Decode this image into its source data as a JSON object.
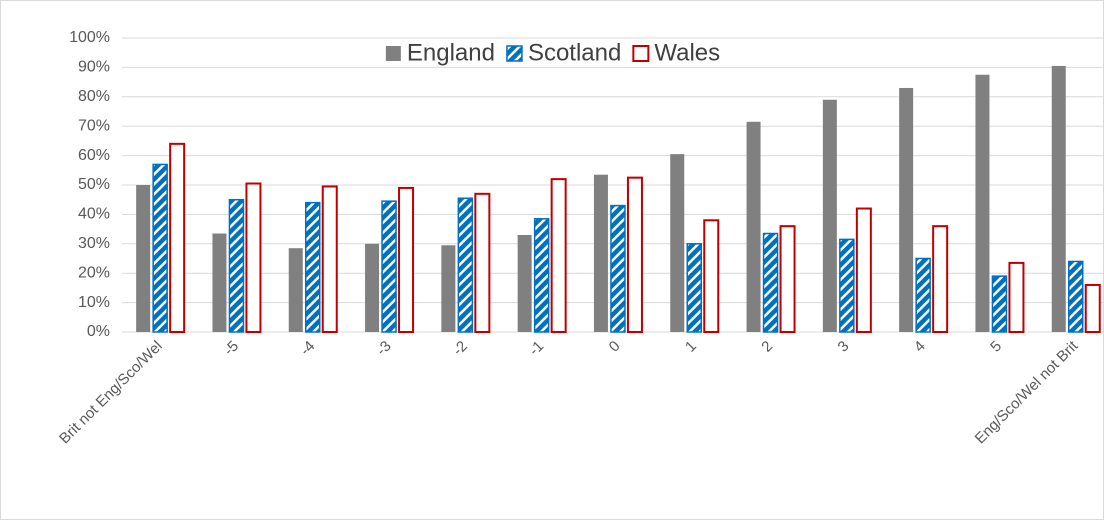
{
  "chart_data": {
    "type": "bar",
    "categories": [
      "Brit not Eng/Sco/Wel",
      "-5",
      "-4",
      "-3",
      "-2",
      "-1",
      "0",
      "1",
      "2",
      "3",
      "4",
      "5",
      "Eng/Sco/Wel not Brit"
    ],
    "series": [
      {
        "name": "England",
        "color": "#808080",
        "style": "solid",
        "values": [
          50,
          33.5,
          28.5,
          30,
          29.5,
          33,
          53.5,
          60.5,
          71.5,
          79,
          83,
          87.5,
          90.5
        ]
      },
      {
        "name": "Scotland",
        "color": "#0070c0",
        "style": "hatch",
        "values": [
          57,
          45,
          44,
          44.5,
          45.5,
          38.5,
          43,
          30,
          33.5,
          31.5,
          25,
          19,
          24
        ]
      },
      {
        "name": "Wales",
        "color": "#c00000",
        "style": "outline",
        "values": [
          64,
          50.5,
          49.5,
          49,
          47,
          52,
          52.5,
          38,
          36,
          42,
          36,
          23.5,
          16
        ]
      }
    ],
    "ylim": [
      0,
      100
    ],
    "yticks": [
      {
        "value": 0,
        "label": "0%"
      },
      {
        "value": 10,
        "label": "10%"
      },
      {
        "value": 20,
        "label": "20%"
      },
      {
        "value": 30,
        "label": "30%"
      },
      {
        "value": 40,
        "label": "40%"
      },
      {
        "value": 50,
        "label": "50%"
      },
      {
        "value": 60,
        "label": "60%"
      },
      {
        "value": 70,
        "label": "70%"
      },
      {
        "value": 80,
        "label": "80%"
      },
      {
        "value": 90,
        "label": "90%"
      },
      {
        "value": 100,
        "label": "100%"
      }
    ],
    "grid": true,
    "legend": "top"
  }
}
